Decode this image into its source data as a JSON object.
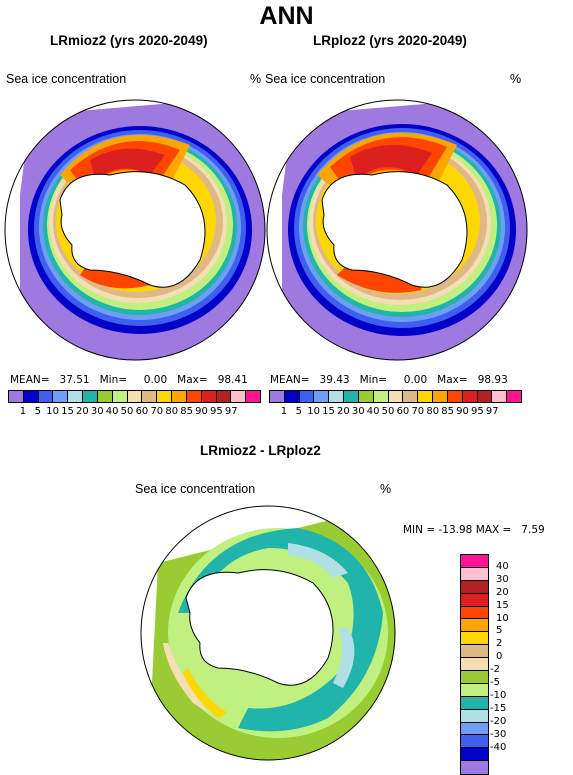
{
  "title": "ANN",
  "left": {
    "subtitle": "LRmioz2 (yrs 2020-2049)",
    "var_label": "Sea ice concentration",
    "unit": "%",
    "mean_label": "MEAN=",
    "mean": "37.51",
    "min_label": "Min=",
    "min": "0.00",
    "max_label": "Max=",
    "max": "98.41"
  },
  "right": {
    "subtitle": "LRploz2 (yrs 2020-2049)",
    "var_label": "Sea ice concentration",
    "unit": "%",
    "mean_label": "MEAN=",
    "mean": "39.43",
    "min_label": "Min=",
    "min": "0.00",
    "max_label": "Max=",
    "max": "98.93"
  },
  "abs_colorbar": {
    "colors": [
      "#9d79e0",
      "#0000c8",
      "#3f5ff0",
      "#6f9ff5",
      "#b0e0e6",
      "#20b4aa",
      "#99cc33",
      "#c0f080",
      "#f5deb3",
      "#deb887",
      "#ffd700",
      "#ffa500",
      "#ff4500",
      "#dc2020",
      "#b22222",
      "#ffc0cb",
      "#ff1493"
    ],
    "labels": [
      "1",
      "5",
      "10",
      "15",
      "20",
      "30",
      "40",
      "50",
      "60",
      "70",
      "80",
      "85",
      "90",
      "95",
      "97"
    ]
  },
  "diff": {
    "subtitle": "LRmioz2 - LRploz2",
    "var_label": "Sea ice concentration",
    "unit": "%",
    "min_label": "MIN =",
    "min": "-13.98",
    "max_label": "MAX =",
    "max": "7.59"
  },
  "diff_colorbar": {
    "colors_top_to_bottom": [
      "#ff1493",
      "#ffc0cb",
      "#b22222",
      "#dc2020",
      "#ff4500",
      "#ffa500",
      "#ffd700",
      "#deb887",
      "#f5deb3",
      "#99cc33",
      "#c0f080",
      "#20b4aa",
      "#b0e0e6",
      "#6f9ff5",
      "#3f5ff0",
      "#0000c8",
      "#9d79e0"
    ],
    "labels_top_to_bottom": [
      "40",
      "30",
      "20",
      "15",
      "10",
      "5",
      "2",
      "0",
      "-2",
      "-5",
      "-10",
      "-15",
      "-20",
      "-30",
      "-40"
    ]
  }
}
